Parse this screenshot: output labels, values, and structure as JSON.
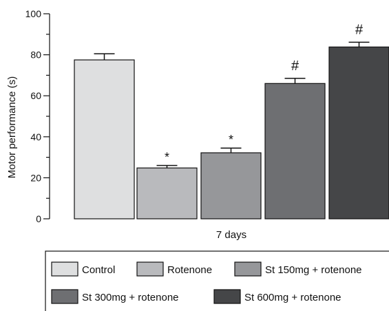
{
  "chart_data": {
    "type": "bar",
    "title": "",
    "xlabel": "7 days",
    "ylabel": "Motor performance (s)",
    "ylim": [
      0,
      100
    ],
    "yticks": [
      0,
      20,
      40,
      60,
      80,
      100
    ],
    "grid": false,
    "legend_position": "bottom",
    "group": "7 days",
    "series": [
      {
        "name": "Control",
        "value": 77.5,
        "error": 3.0,
        "mark": "",
        "color": "#dedfe0"
      },
      {
        "name": "Rotenone",
        "value": 24.8,
        "error": 1.2,
        "mark": "*",
        "color": "#b9babd"
      },
      {
        "name": "St 150mg + rotenone",
        "value": 32.2,
        "error": 2.3,
        "mark": "*",
        "color": "#96979a"
      },
      {
        "name": "St 300mg + rotenone",
        "value": 66.0,
        "error": 2.5,
        "mark": "#",
        "color": "#6e6f72"
      },
      {
        "name": "St 600mg + rotenone",
        "value": 83.8,
        "error": 2.3,
        "mark": "#",
        "color": "#454648"
      }
    ]
  }
}
